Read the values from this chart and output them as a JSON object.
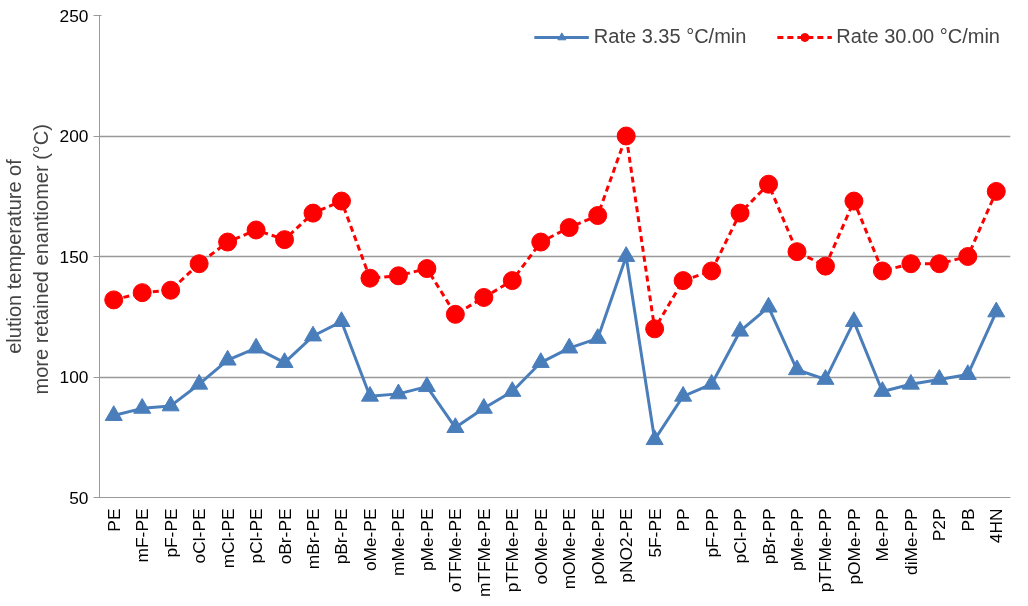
{
  "chart_data": {
    "type": "line",
    "ylabel": "elution temperature of\nmore retained enantiomer  (°C)",
    "categories": [
      "PE",
      "mF-PE",
      "pF-PE",
      "oCl-PE",
      "mCl-PE",
      "pCl-PE",
      "oBr-PE",
      "mBr-PE",
      "pBr-PE",
      "oMe-PE",
      "mMe-PE",
      "pMe-PE",
      "oTFMe-PE",
      "mTFMe-PE",
      "pTFMe-PE",
      "oOMe-PE",
      "mOMe-PE",
      "pOMe-PE",
      "pNO2-PE",
      "5F-PE",
      "PP",
      "pF-PP",
      "pCl-PP",
      "pBr-PP",
      "pMe-PP",
      "pTFMe-PP",
      "pOMe-PP",
      "Me-PP",
      "diMe-PP",
      "P2P",
      "PB",
      "4HN"
    ],
    "series": [
      {
        "name": "Rate 3.35 °C/min",
        "color": "#4a7ebb",
        "marker": "triangle",
        "line_style": "solid",
        "values": [
          84,
          87,
          88,
          97,
          107,
          112,
          106,
          117,
          123,
          92,
          93,
          96,
          79,
          87,
          94,
          106,
          112,
          116,
          150,
          74,
          92,
          97,
          119,
          129,
          103,
          99,
          123,
          94,
          97,
          99,
          101,
          127
        ]
      },
      {
        "name": "Rate 30.00 °C/min",
        "color": "#ff0000",
        "marker": "circle",
        "line_style": "dashed",
        "values": [
          132,
          135,
          136,
          147,
          156,
          161,
          157,
          168,
          173,
          141,
          142,
          145,
          126,
          133,
          140,
          156,
          162,
          167,
          200,
          120,
          140,
          144,
          168,
          180,
          152,
          146,
          173,
          144,
          147,
          147,
          150,
          177
        ]
      }
    ],
    "ylim": [
      50,
      250
    ],
    "yticks": [
      50,
      100,
      150,
      200,
      250
    ],
    "grid": "y",
    "legend": "top right"
  }
}
